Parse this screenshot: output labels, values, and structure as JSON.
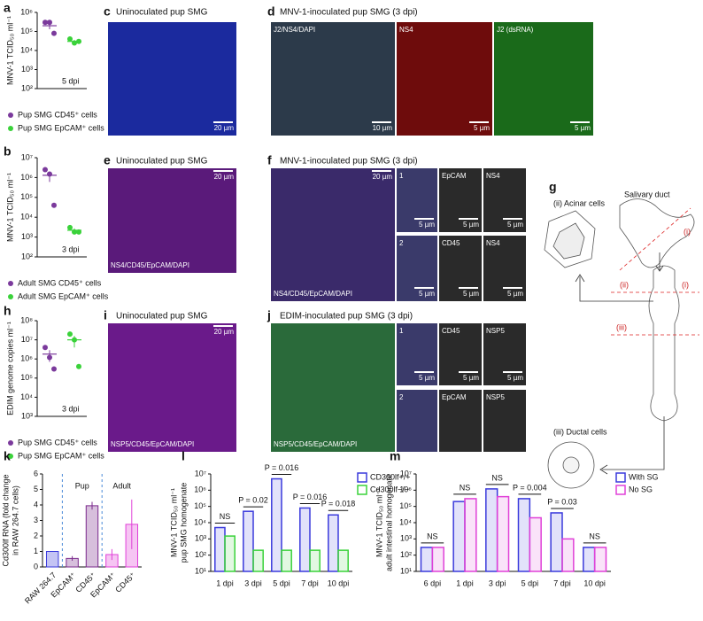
{
  "chart_data": [
    {
      "type": "dot",
      "letter": "a",
      "ylabel": [
        "MNV-1 TCID₅₀ ml⁻¹"
      ],
      "log": true,
      "ylim": [
        100,
        1000000
      ],
      "yticks": [
        {
          "value": 100,
          "label": "10²"
        },
        {
          "value": 1000,
          "label": "10³"
        },
        {
          "value": 10000,
          "label": "10⁴"
        },
        {
          "value": 100000,
          "label": "10⁵"
        },
        {
          "value": 1000000,
          "label": "10⁶"
        }
      ],
      "annotation": "5 dpi",
      "series": [
        {
          "name": "Pup SMG CD45⁺ cells",
          "color": "#7b3a9c",
          "values": [
            300000,
            300000,
            80000
          ],
          "mean": 200000,
          "sem": 70000
        },
        {
          "name": "Pup SMG EpCAM⁺ cells",
          "color": "#3ad23a",
          "values": [
            40000,
            25000,
            30000
          ],
          "mean": 30000,
          "sem": 5000
        }
      ]
    },
    {
      "type": "dot",
      "letter": "b",
      "ylabel": [
        "MNV-1 TCID₅₀ ml⁻¹"
      ],
      "log": true,
      "ylim": [
        100,
        10000000
      ],
      "yticks": [
        {
          "value": 100,
          "label": "10²"
        },
        {
          "value": 1000,
          "label": "10³"
        },
        {
          "value": 10000,
          "label": "10⁴"
        },
        {
          "value": 100000,
          "label": "10⁵"
        },
        {
          "value": 1000000,
          "label": "10⁶"
        },
        {
          "value": 10000000,
          "label": "10⁷"
        }
      ],
      "annotation": "3 dpi",
      "series": [
        {
          "name": "Adult SMG CD45⁺ cells",
          "color": "#7b3a9c",
          "values": [
            2500000,
            1500000,
            40000
          ],
          "mean": 1300000,
          "sem": 700000
        },
        {
          "name": "Adult SMG EpCAM⁺ cells",
          "color": "#3ad23a",
          "values": [
            3000,
            1800,
            1800
          ],
          "mean": 2200,
          "sem": 500
        }
      ]
    },
    {
      "type": "dot",
      "letter": "h",
      "ylabel": [
        "EDIM  genome copies ml⁻¹"
      ],
      "log": true,
      "ylim": [
        1000,
        100000000
      ],
      "yticks": [
        {
          "value": 1000,
          "label": "10³"
        },
        {
          "value": 10000,
          "label": "10⁴"
        },
        {
          "value": 100000,
          "label": "10⁵"
        },
        {
          "value": 1000000,
          "label": "10⁶"
        },
        {
          "value": 10000000,
          "label": "10⁷"
        },
        {
          "value": 100000000,
          "label": "10⁸"
        }
      ],
      "annotation": "3 dpi",
      "series": [
        {
          "name": "Pup SMG CD45⁺ cells",
          "color": "#7b3a9c",
          "values": [
            4000000,
            1200000,
            300000
          ],
          "mean": 1800000,
          "sem": 1100000
        },
        {
          "name": "Pup SMG EpCAM⁺ cells",
          "color": "#3ad23a",
          "values": [
            20000000,
            10000000,
            400000
          ],
          "mean": 10000000,
          "sem": 6000000
        }
      ]
    },
    {
      "type": "bar",
      "letter": "k",
      "ylabel": [
        "Cd300lf RNA (fold change",
        "in RAW 264.7 cells)"
      ],
      "log": false,
      "ylim": [
        0,
        6
      ],
      "yticks": [
        0,
        1,
        2,
        3,
        4,
        5,
        6
      ],
      "groups": [
        "Pup",
        "Adult"
      ],
      "categories": [
        "RAW 264.7",
        "EpCAM⁺",
        "CD45⁺",
        "EpCAM⁺",
        "CD45⁺"
      ],
      "values": [
        1,
        0.55,
        3.95,
        0.8,
        2.75
      ],
      "errors": [
        0.02,
        0.15,
        0.25,
        0.35,
        1.6
      ],
      "colors": [
        "#3a3adc",
        "#7b2a8c",
        "#7b2a8c",
        "#e040d8",
        "#e040d8"
      ]
    },
    {
      "type": "grouped-bar",
      "letter": "l",
      "ylabel": [
        "MNV-1 TCID₅₀ ml⁻¹",
        "pup SMG homogenate"
      ],
      "log": true,
      "ylim": [
        10,
        10000000
      ],
      "yticks": [
        {
          "value": 10,
          "label": "10¹"
        },
        {
          "value": 100,
          "label": "10²"
        },
        {
          "value": 1000,
          "label": "10³"
        },
        {
          "value": 10000,
          "label": "10⁴"
        },
        {
          "value": 100000,
          "label": "10⁵"
        },
        {
          "value": 1000000,
          "label": "10⁶"
        },
        {
          "value": 10000000,
          "label": "10⁷"
        }
      ],
      "categories": [
        "1 dpi",
        "3 dpi",
        "5 dpi",
        "7 dpi",
        "10 dpi"
      ],
      "annotations": [
        "NS",
        "P = 0.02",
        "P = 0.016",
        "P = 0.016",
        "P = 0.018"
      ],
      "series": [
        {
          "name": "CD300lf+/+",
          "color": "#3a3adc",
          "values": [
            5000,
            50000,
            5000000,
            80000,
            30000
          ]
        },
        {
          "name": "Cd300lf−/−",
          "color": "#3ad23a",
          "values": [
            1500,
            200,
            200,
            200,
            200
          ]
        }
      ]
    },
    {
      "type": "grouped-bar",
      "letter": "m",
      "ylabel": [
        "MNV-1 TCID₅₀ ml⁻¹",
        "adult intestinal homogenate"
      ],
      "log": true,
      "ylim": [
        10,
        10000000
      ],
      "yticks": [
        {
          "value": 10,
          "label": "10¹"
        },
        {
          "value": 100,
          "label": "10²"
        },
        {
          "value": 1000,
          "label": "10³"
        },
        {
          "value": 10000,
          "label": "10⁴"
        },
        {
          "value": 100000,
          "label": "10⁵"
        },
        {
          "value": 1000000,
          "label": "10⁶"
        },
        {
          "value": 10000000,
          "label": "10⁷"
        }
      ],
      "categories": [
        "6 dpi",
        "1 dpi",
        "3 dpi",
        "5 dpi",
        "7 dpi",
        "10 dpi"
      ],
      "annotations": [
        "NS",
        "NS",
        "NS",
        "P = 0.004",
        "P = 0.03",
        "NS"
      ],
      "series": [
        {
          "name": "With SG",
          "color": "#3a3adc",
          "values": [
            300,
            200000,
            1200000,
            300000,
            40000,
            300
          ]
        },
        {
          "name": "No SG",
          "color": "#e040d8",
          "values": [
            300,
            300000,
            400000,
            20000,
            1000,
            300
          ]
        }
      ]
    }
  ],
  "panels": [
    {
      "letter": "c",
      "title": "Uninoculated pup SMG",
      "tiles": [
        {
          "scale": "20 µm"
        }
      ]
    },
    {
      "letter": "d",
      "title": "MNV-1-inoculated pup SMG (3 dpi)",
      "tiles": [
        {
          "label": "J2/NS4/DAPI",
          "scale": "10 µm"
        },
        {
          "label": "NS4",
          "scale": "5 µm"
        },
        {
          "label": "J2 (dsRNA)",
          "scale": "5 µm"
        }
      ]
    },
    {
      "letter": "e",
      "title": "Uninoculated pup SMG",
      "tiles": [
        {
          "label": "NS4/CD45/EpCAM/DAPI",
          "scale": "20 µm"
        }
      ]
    },
    {
      "letter": "f",
      "title": "MNV-1-inoculated pup SMG (3 dpi)",
      "tiles": [
        {
          "label": "NS4/CD45/EpCAM/DAPI",
          "scale": "20 µm"
        },
        {
          "label": "1",
          "scale": "5 µm"
        },
        {
          "label": "EpCAM",
          "scale": "5 µm"
        },
        {
          "label": "NS4",
          "scale": "5 µm"
        },
        {
          "label": "2",
          "scale": "5 µm"
        },
        {
          "label": "CD45",
          "scale": "5 µm"
        },
        {
          "label": "NS4",
          "scale": "5 µm"
        }
      ]
    },
    {
      "letter": "i",
      "title": "Uninoculated pup SMG",
      "tiles": [
        {
          "label": "NSP5/CD45/EpCAM/DAPI",
          "scale": "20 µm"
        }
      ]
    },
    {
      "letter": "j",
      "title": "EDIM-inoculated pup SMG (3 dpi)",
      "tiles": [
        {
          "label": "NSP5/CD45/EpCAM/DAPI"
        },
        {
          "label": "1",
          "scale": "5 µm"
        },
        {
          "label": "CD45",
          "scale": "5 µm"
        },
        {
          "label": "NSP5",
          "scale": "5 µm"
        },
        {
          "label": "2"
        },
        {
          "label": "EpCAM"
        },
        {
          "label": "NSP5"
        }
      ]
    }
  ],
  "diagram": {
    "letter": "g",
    "acinar": "(ii) Acinar cells",
    "duct": "Salivary duct",
    "marks": [
      "(i)",
      "(ii)",
      "(i)",
      "(iii)"
    ],
    "ductal": "(iii) Ductal cells"
  }
}
